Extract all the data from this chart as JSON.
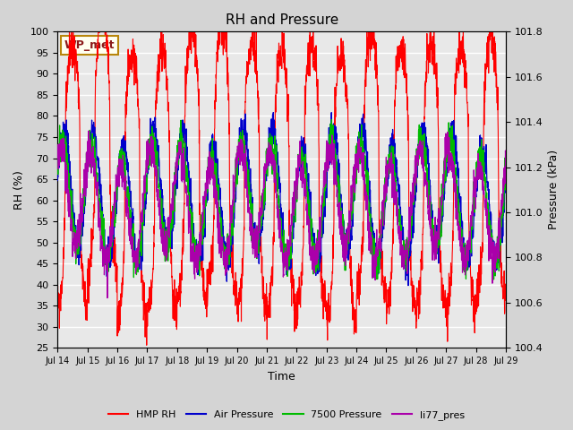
{
  "title": "RH and Pressure",
  "xlabel": "Time",
  "ylabel_left": "RH (%)",
  "ylabel_right": "Pressure (kPa)",
  "ylim_left": [
    25,
    100
  ],
  "ylim_right": [
    100.4,
    101.8
  ],
  "yticks_left": [
    25,
    30,
    35,
    40,
    45,
    50,
    55,
    60,
    65,
    70,
    75,
    80,
    85,
    90,
    95,
    100
  ],
  "yticks_right": [
    100.4,
    100.6,
    100.8,
    101.0,
    101.2,
    101.4,
    101.6,
    101.8
  ],
  "xtick_positions": [
    14,
    15,
    16,
    17,
    18,
    19,
    20,
    21,
    22,
    23,
    24,
    25,
    26,
    27,
    28,
    29
  ],
  "xtick_labels": [
    "Jul 14",
    "Jul 15",
    "Jul 16",
    "Jul 17",
    "Jul 18",
    "Jul 19",
    "Jul 20",
    "Jul 21",
    "Jul 22",
    "Jul 23",
    "Jul 24",
    "Jul 25",
    "Jul 26",
    "Jul 27",
    "Jul 28",
    "Jul 29"
  ],
  "station_label": "WP_met",
  "station_label_color": "#8B1A1A",
  "station_label_bg": "#FFFFF0",
  "station_label_border": "#B8860B",
  "line_hmp_rh": "#FF0000",
  "line_air_pressure": "#0000CC",
  "line_7500_pressure": "#00BB00",
  "line_li77_pres": "#AA00AA",
  "legend_labels": [
    "HMP RH",
    "Air Pressure",
    "7500 Pressure",
    "li77_pres"
  ],
  "bg_color": "#D4D4D4",
  "plot_bg_color": "#E8E8E8",
  "grid_color": "#FFFFFF",
  "title_fontsize": 11,
  "label_fontsize": 9,
  "tick_fontsize": 8,
  "xtick_fontsize": 7
}
